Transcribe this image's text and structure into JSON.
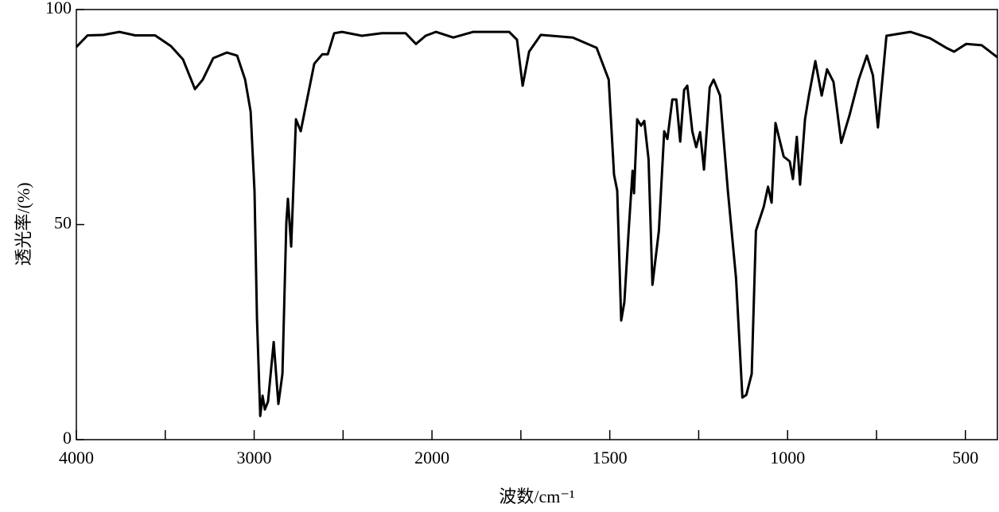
{
  "chart_data": {
    "type": "line",
    "xlabel": "波数/cm⁻¹",
    "ylabel": "透光率/(%)",
    "xlim": [
      4000,
      410
    ],
    "ylim": [
      0,
      100
    ],
    "xticks": [
      4000,
      3000,
      2000,
      1500,
      1000,
      500
    ],
    "xminor": [
      3500,
      2500,
      1750,
      1250,
      750
    ],
    "yticks": [
      0,
      50,
      100
    ],
    "xscale": {
      "break": 2000,
      "factor": 2
    },
    "series": [
      {
        "color": "#000000",
        "x": [
          4000,
          3937,
          3848,
          3758,
          3669,
          3557,
          3468,
          3400,
          3333,
          3289,
          3230,
          3154,
          3096,
          3051,
          3020,
          2998,
          2984,
          2966,
          2953,
          2940,
          2922,
          2890,
          2864,
          2841,
          2819,
          2810,
          2792,
          2765,
          2738,
          2707,
          2662,
          2617,
          2586,
          2550,
          2506,
          2394,
          2282,
          2148,
          2090,
          2036,
          1989,
          1940,
          1884,
          1783,
          1761,
          1745,
          1727,
          1694,
          1604,
          1537,
          1503,
          1488,
          1479,
          1468,
          1459,
          1447,
          1436,
          1432,
          1423,
          1412,
          1403,
          1391,
          1380,
          1362,
          1347,
          1338,
          1324,
          1313,
          1302,
          1291,
          1282,
          1268,
          1257,
          1246,
          1235,
          1219,
          1208,
          1190,
          1168,
          1145,
          1127,
          1116,
          1101,
          1089,
          1067,
          1055,
          1045,
          1034,
          1011,
          994,
          985,
          974,
          965,
          951,
          940,
          922,
          904,
          889,
          871,
          849,
          826,
          800,
          777,
          760,
          746,
          722,
          655,
          599,
          554,
          532,
          498,
          454,
          410
        ],
        "values": [
          91.3,
          94,
          94.1,
          94.8,
          94,
          94,
          91.5,
          88.4,
          81.5,
          83.7,
          88.7,
          90,
          89.3,
          83.7,
          76.3,
          57.7,
          28.1,
          5.5,
          10.2,
          7,
          8.9,
          22.7,
          8.3,
          15.3,
          50.5,
          56,
          44.9,
          74.5,
          71.7,
          78.2,
          87.4,
          89.6,
          89.6,
          94.5,
          94.8,
          93.9,
          94.5,
          94.5,
          92,
          93.9,
          94.8,
          93.5,
          94.8,
          94.8,
          93,
          82.3,
          90.2,
          94.1,
          93.5,
          91.1,
          83.7,
          61.6,
          57.9,
          27.7,
          32,
          48.6,
          62.5,
          57.3,
          74.5,
          73,
          74.1,
          65.2,
          36,
          48.6,
          71.7,
          69.9,
          79.1,
          79.1,
          69.3,
          81.3,
          82.3,
          71.7,
          68,
          71.5,
          62.8,
          81.9,
          83.7,
          80,
          57.9,
          37.5,
          9.8,
          10.4,
          15.3,
          48.6,
          54.2,
          58.8,
          55.1,
          73.6,
          65.8,
          64.7,
          60.6,
          70.4,
          59.3,
          74.5,
          80,
          88,
          80,
          86.1,
          83.2,
          69,
          75.4,
          83.7,
          89.3,
          84.7,
          72.6,
          93.9,
          94.8,
          93.3,
          91.1,
          90.2,
          92,
          91.7,
          88.9
        ]
      }
    ]
  }
}
